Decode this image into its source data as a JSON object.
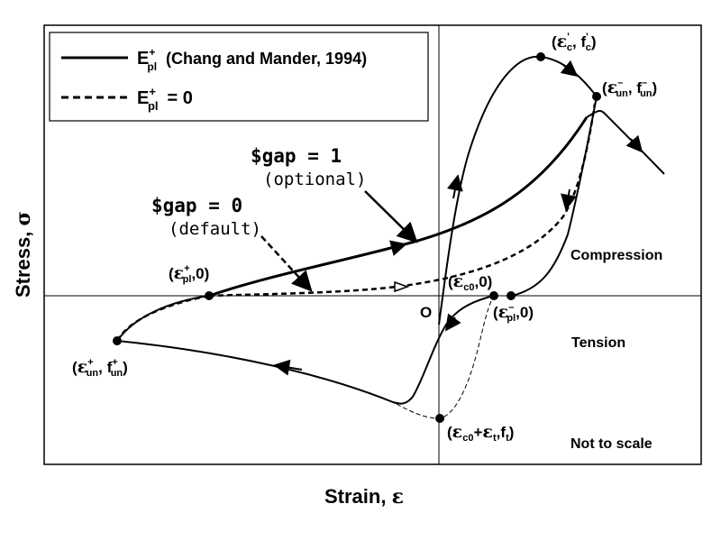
{
  "axes": {
    "x_title": "Strain, ",
    "x_symbol": "ε",
    "y_title": "Stress, ",
    "y_symbol": "σ",
    "origin": "O"
  },
  "legend": {
    "solid": {
      "E": "E",
      "sup": "+",
      "sub": "pl",
      "text": "(Chang and Mander, 1994)"
    },
    "dashed": {
      "E": "E",
      "sup": "+",
      "sub": "pl",
      "text": "= 0"
    }
  },
  "regions": {
    "compression": "Compression",
    "tension": "Tension",
    "scale_note": "Not to scale"
  },
  "gap_labels": {
    "gap1": {
      "text": "$gap = 1",
      "note": "(optional)"
    },
    "gap0": {
      "text": "$gap = 0",
      "note": "(default)"
    }
  },
  "points": {
    "peak": {
      "open": "(",
      "e": "ε",
      "e_sup": "'",
      "e_sub": "c",
      "sep": ", ",
      "f": "f",
      "f_sup": "'",
      "f_sub": "c",
      "close": ")"
    },
    "unload": {
      "open": "(",
      "e": "ε",
      "e_sup": "–",
      "e_sub": "un",
      "sep": ", ",
      "f": "f",
      "f_sup": "–",
      "f_sub": "un",
      "close": ")"
    },
    "epl_pos": {
      "open": "(",
      "e": "ε",
      "e_sup": "+",
      "e_sub": "pl",
      "tail": ",0)"
    },
    "ec0": {
      "open": "(",
      "e": "ε",
      "e_sub": "c0",
      "tail": ",0)"
    },
    "epl_neg": {
      "open": "(",
      "e": "ε",
      "e_sup": "–",
      "e_sub": "pl",
      "tail": ",0)"
    },
    "tension_unload": {
      "open": "(",
      "e": "ε",
      "e_sup": "+",
      "e_sub": "un",
      "sep": ", ",
      "f": "f",
      "f_sup": "+",
      "f_sub": "un",
      "close": ")"
    },
    "tensile_strength": {
      "open": "(",
      "e": "ε",
      "e_sub": "c0",
      "plus": "+",
      "e2": "ε",
      "e2_sub": "t",
      "sep": ",",
      "f": "f",
      "f_sub": "t",
      "close": ")"
    }
  }
}
